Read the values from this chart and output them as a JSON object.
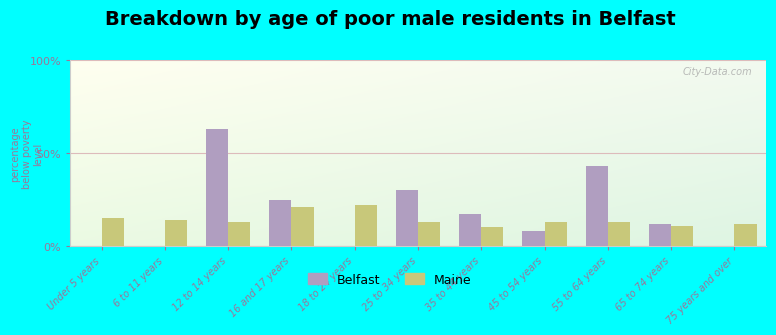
{
  "title": "Breakdown by age of poor male residents in Belfast",
  "ylabel": "percentage\nbelow poverty\nlevel",
  "categories": [
    "Under 5 years",
    "6 to 11 years",
    "12 to 14 years",
    "16 and 17 years",
    "18 to 24 years",
    "25 to 34 years",
    "35 to 44 years",
    "45 to 54 years",
    "55 to 64 years",
    "65 to 74 years",
    "75 years and over"
  ],
  "belfast_values": [
    0,
    0,
    63,
    25,
    0,
    30,
    17,
    8,
    43,
    12,
    0
  ],
  "maine_values": [
    15,
    14,
    13,
    21,
    22,
    13,
    10,
    13,
    13,
    11,
    12
  ],
  "belfast_color": "#b09ec0",
  "maine_color": "#c8c87a",
  "background_color": "#00ffff",
  "ylim": [
    0,
    100
  ],
  "yticks": [
    0,
    50,
    100
  ],
  "ytick_labels": [
    "0%",
    "50%",
    "100%"
  ],
  "grid_color": "#ddbbbb",
  "watermark": "City-Data.com",
  "bar_width": 0.35,
  "title_fontsize": 14,
  "legend_labels": [
    "Belfast",
    "Maine"
  ],
  "tick_color": "#997799",
  "label_color": "#997799"
}
